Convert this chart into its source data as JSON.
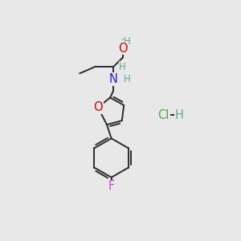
{
  "background_color": "#e8e8e8",
  "figsize": [
    3.0,
    3.0
  ],
  "dpi": 100,
  "bond_color": "#2a2a2a",
  "bond_width": 1.4,
  "dbo": 0.012,
  "atom_colors": {
    "O": "#cc0000",
    "N": "#2222cc",
    "F": "#cc44cc",
    "H": "#5fa898",
    "Cl": "#44aa44",
    "C": "#2a2a2a"
  }
}
